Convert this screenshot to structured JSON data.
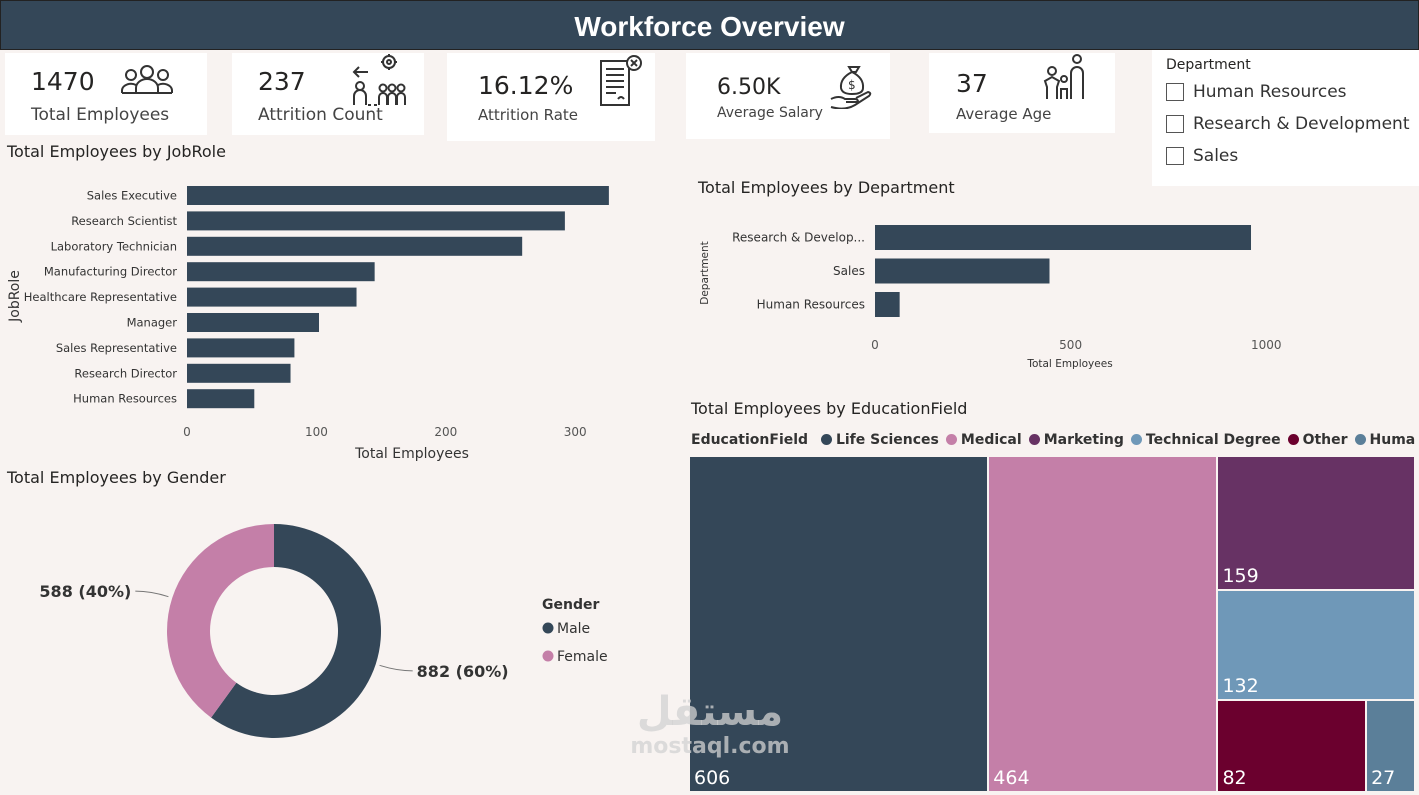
{
  "header": {
    "title": "Workforce Overview"
  },
  "kpis": [
    {
      "value": "1470",
      "label": "Total Employees",
      "icon": "people-group-icon"
    },
    {
      "value": "237",
      "label": "Attrition Count",
      "icon": "people-leaving-icon"
    },
    {
      "value": "16.12%",
      "label": "Attrition Rate",
      "icon": "document-cancel-icon"
    },
    {
      "value": "6.50K",
      "label": "Average Salary",
      "icon": "money-bag-hand-icon"
    },
    {
      "value": "37",
      "label": "Average Age",
      "icon": "family-icon"
    }
  ],
  "slicer": {
    "title": "Department",
    "items": [
      "Human Resources",
      "Research & Development",
      "Sales"
    ]
  },
  "chart_data": [
    {
      "type": "bar",
      "orientation": "horizontal",
      "title": "Total Employees by JobRole",
      "ylabel": "JobRole",
      "xlabel": "Total Employees",
      "categories": [
        "Sales Executive",
        "Research Scientist",
        "Laboratory Technician",
        "Manufacturing Director",
        "Healthcare Representative",
        "Manager",
        "Sales Representative",
        "Research Director",
        "Human Resources"
      ],
      "values": [
        326,
        292,
        259,
        145,
        131,
        102,
        83,
        80,
        52
      ],
      "xlim": [
        0,
        340
      ],
      "xticks": [
        0,
        100,
        200,
        300
      ],
      "color": "#344758"
    },
    {
      "type": "bar",
      "orientation": "horizontal",
      "title": "Total Employees by Department",
      "ylabel": "Department",
      "xlabel": "Total Employees",
      "categories": [
        "Research & Develop...",
        "Sales",
        "Human Resources"
      ],
      "values": [
        961,
        446,
        63
      ],
      "xlim": [
        0,
        1030
      ],
      "xticks": [
        0,
        500,
        1000
      ],
      "color": "#344758"
    },
    {
      "type": "pie",
      "variant": "donut",
      "title": "Total Employees by Gender",
      "legend_title": "Gender",
      "categories": [
        "Male",
        "Female"
      ],
      "values": [
        882,
        588
      ],
      "data_labels": [
        "882 (60%)",
        "588 (40%)"
      ],
      "colors": [
        "#344758",
        "#c47fa8"
      ]
    },
    {
      "type": "treemap",
      "title": "Total Employees by EducationField",
      "legend_title": "EducationField",
      "categories": [
        "Life Sciences",
        "Medical",
        "Marketing",
        "Technical Degree",
        "Other",
        "Human Resour..."
      ],
      "values": [
        606,
        464,
        159,
        132,
        82,
        27
      ],
      "colors": [
        "#344758",
        "#c47fa8",
        "#673264",
        "#6f98b8",
        "#6b002e",
        "#5b7f99"
      ]
    }
  ],
  "watermark": {
    "text": "mostaql.com"
  }
}
